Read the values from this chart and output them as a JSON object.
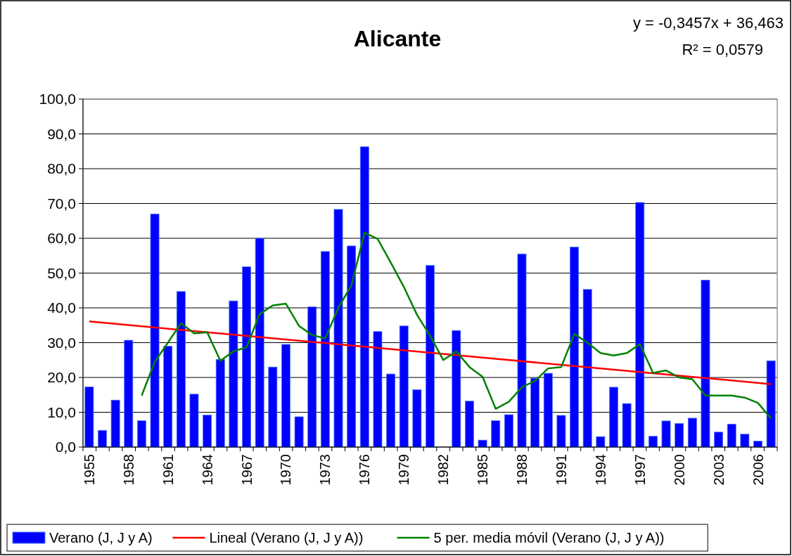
{
  "chart_data": {
    "type": "bar",
    "title": "Alicante",
    "categories": [
      "1955",
      null,
      null,
      "1958",
      null,
      null,
      "1961",
      null,
      null,
      "1964",
      null,
      null,
      "1967",
      null,
      null,
      "1970",
      null,
      null,
      "1973",
      null,
      null,
      "1976",
      null,
      null,
      "1979",
      null,
      null,
      "1982",
      null,
      null,
      "1985",
      null,
      null,
      "1988",
      null,
      null,
      "1991",
      null,
      null,
      "1994",
      null,
      null,
      "1997",
      null,
      null,
      "2000",
      null,
      null,
      "2003",
      null,
      null,
      "2006",
      null
    ],
    "series": [
      {
        "name": "Verano (J, J y A)",
        "color": "#0000ff",
        "values": [
          17.3,
          4.8,
          13.5,
          30.7,
          7.6,
          67.0,
          29.0,
          44.7,
          15.2,
          9.2,
          25.2,
          42.0,
          51.8,
          60.0,
          23.0,
          29.5,
          8.7,
          40.3,
          56.2,
          68.3,
          57.8,
          86.3,
          33.2,
          21.0,
          34.8,
          16.5,
          52.2,
          null,
          33.5,
          13.2,
          2.0,
          7.6,
          9.3,
          55.5,
          19.8,
          21.2,
          9.1,
          57.5,
          45.3,
          3.0,
          17.2,
          12.5,
          70.3,
          3.1,
          7.5,
          6.8,
          8.3,
          48.0,
          4.3,
          6.6,
          3.7,
          1.7,
          24.8
        ]
      },
      {
        "name": "Lineal (Verano (J, J y A))",
        "type": "line",
        "color": "#ff0000",
        "values": [
          36.1,
          null,
          null,
          null,
          null,
          null,
          null,
          null,
          null,
          null,
          null,
          null,
          null,
          null,
          null,
          null,
          null,
          null,
          null,
          null,
          null,
          null,
          null,
          null,
          null,
          null,
          null,
          null,
          null,
          null,
          null,
          null,
          null,
          null,
          null,
          null,
          null,
          null,
          null,
          null,
          null,
          null,
          null,
          null,
          null,
          null,
          null,
          null,
          null,
          null,
          null,
          null,
          18.1
        ]
      },
      {
        "name": "5 per. media móvil (Verano (J, J y A))",
        "type": "line",
        "color": "#008000",
        "values": [
          null,
          null,
          null,
          null,
          14.8,
          24.5,
          30.0,
          35.6,
          32.7,
          33.0,
          24.8,
          27.5,
          28.7,
          38.2,
          40.7,
          41.2,
          34.8,
          32.2,
          31.2,
          40.0,
          46.5,
          61.6,
          59.8,
          53.0,
          46.0,
          38.0,
          32.0,
          25.0,
          27.5,
          23.0,
          20.2,
          11.0,
          13.0,
          17.2,
          19.0,
          22.6,
          23.0,
          32.5,
          30.0,
          27.0,
          26.3,
          27.0,
          29.6,
          21.3,
          22.0,
          20.0,
          19.5,
          14.8,
          14.8,
          14.8,
          14.2,
          12.7,
          8.2
        ]
      }
    ],
    "ylim": [
      0,
      100
    ],
    "yticks": [
      {
        "value": 0,
        "label": "0,0"
      },
      {
        "value": 10,
        "label": "10,0"
      },
      {
        "value": 20,
        "label": "20,0"
      },
      {
        "value": 30,
        "label": "30,0"
      },
      {
        "value": 40,
        "label": "40,0"
      },
      {
        "value": 50,
        "label": "50,0"
      },
      {
        "value": 60,
        "label": "60,0"
      },
      {
        "value": 70,
        "label": "70,0"
      },
      {
        "value": 80,
        "label": "80,0"
      },
      {
        "value": 90,
        "label": "90,0"
      },
      {
        "value": 100,
        "label": "100,0"
      }
    ],
    "grid": "y",
    "legend": "bottom",
    "marker": "none",
    "line_style": "solid",
    "annotations": [
      "y = -0,3457x + 36,463",
      "R² = 0,0579"
    ]
  }
}
